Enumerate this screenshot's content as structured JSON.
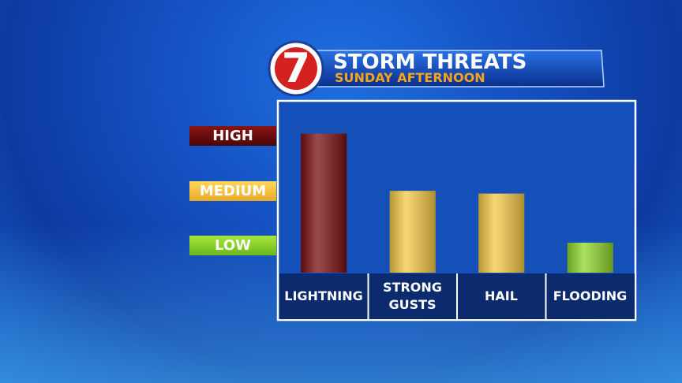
{
  "chart_data": {
    "type": "bar",
    "title": "STORM THREATS",
    "subtitle": "SUNDAY AFTERNOON",
    "logo": "7",
    "categories": [
      "LIGHTNING",
      "STRONG GUSTS",
      "HAIL",
      "FLOODING"
    ],
    "values": [
      3.05,
      2,
      1.95,
      1.05
    ],
    "colors": [
      "#7a0f10",
      "#f6c945",
      "#f6c945",
      "#8fd62b"
    ],
    "ylim": [
      0.5,
      3.65
    ],
    "yticks": [
      {
        "value": 3,
        "label": "HIGH"
      },
      {
        "value": 2,
        "label": "MEDIUM"
      },
      {
        "value": 1,
        "label": "LOW"
      }
    ]
  }
}
